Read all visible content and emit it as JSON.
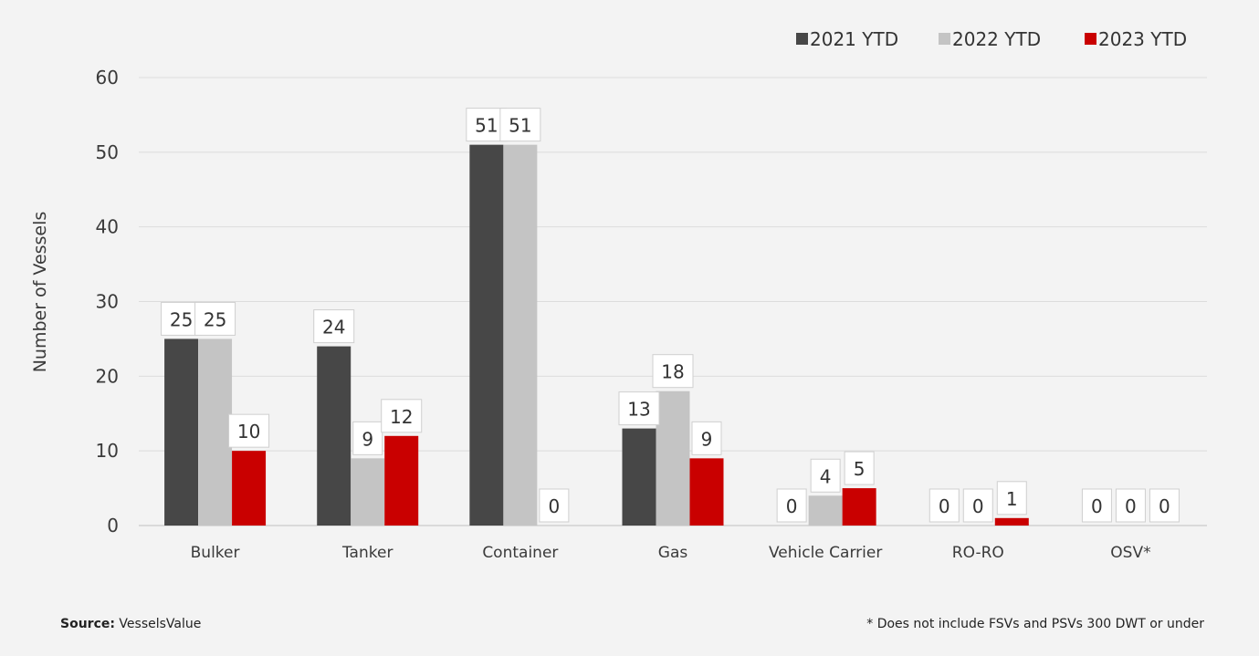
{
  "chart_data": {
    "type": "bar",
    "categories": [
      "Bulker",
      "Tanker",
      "Container",
      "Gas",
      "Vehicle Carrier",
      "RO-RO",
      "OSV*"
    ],
    "series": [
      {
        "name": "2021 YTD",
        "values": [
          25,
          24,
          51,
          13,
          0,
          0,
          0
        ]
      },
      {
        "name": "2022 YTD",
        "values": [
          25,
          9,
          51,
          18,
          4,
          0,
          0
        ]
      },
      {
        "name": "2023 YTD",
        "values": [
          10,
          12,
          0,
          9,
          5,
          1,
          0
        ]
      }
    ],
    "title": "",
    "xlabel": "",
    "ylabel": "Number of Vessels",
    "ylim": [
      0,
      60
    ],
    "yticks": [
      0,
      10,
      20,
      30,
      40,
      50,
      60
    ],
    "grid": true,
    "legend_position": "top-right",
    "colors": [
      "#474747",
      "#c4c4c4",
      "#c90000"
    ]
  },
  "footer": {
    "source_label": "Source:",
    "source_value": " VesselsValue",
    "note": "* Does not include FSVs and PSVs 300 DWT or under"
  }
}
